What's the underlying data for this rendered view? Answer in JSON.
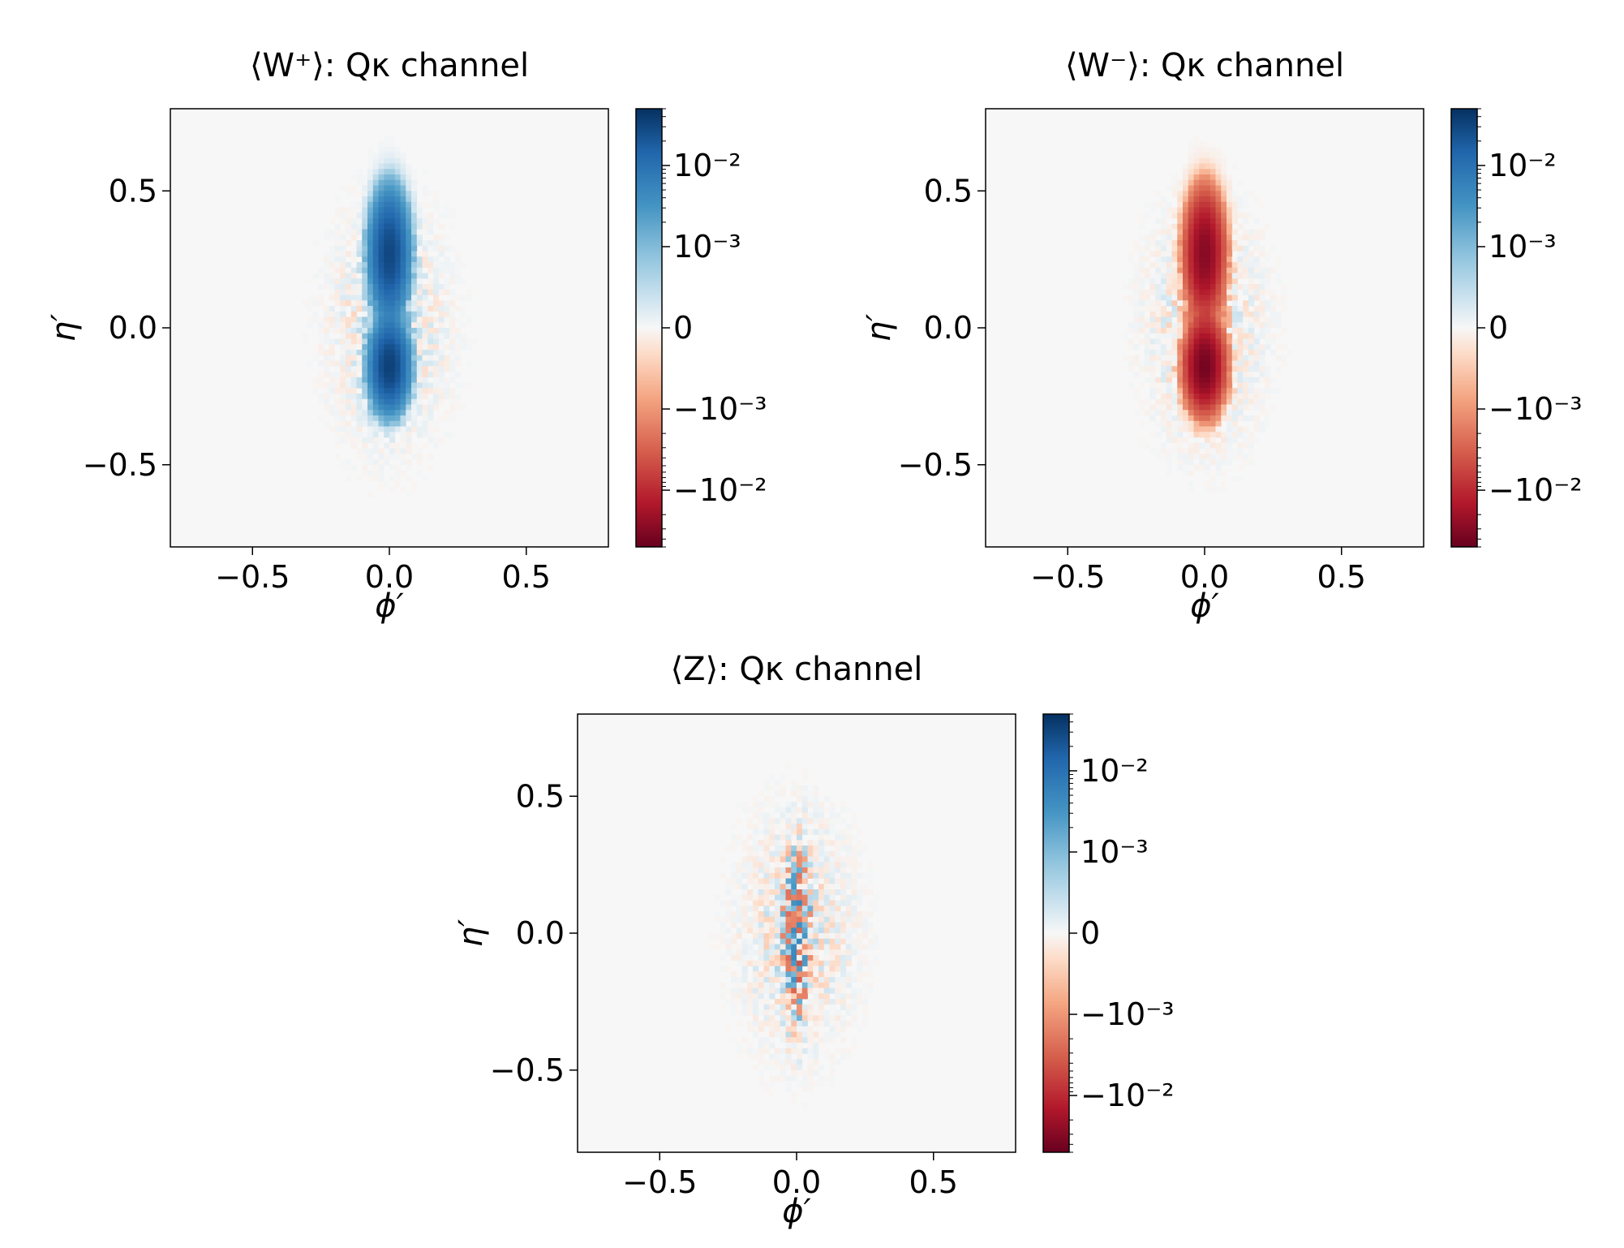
{
  "chart_data": [
    {
      "type": "heatmap",
      "title": "⟨W⁺⟩: Qκ channel",
      "xlabel": "ϕ′",
      "ylabel": "η′",
      "xlim": [
        -0.8,
        0.8
      ],
      "ylim": [
        -0.8,
        0.8
      ],
      "xticks": [
        -0.5,
        0.0,
        0.5
      ],
      "xtick_labels": [
        "−0.5",
        "0.0",
        "0.5"
      ],
      "yticks": [
        -0.5,
        0.0,
        0.5
      ],
      "ytick_labels": [
        "−0.5",
        "0.0",
        "0.5"
      ],
      "colorbar": {
        "scale": "symlog",
        "range": [
          -0.05,
          0.05
        ],
        "ticks": [
          0.01,
          0.001,
          0,
          -0.001,
          -0.01
        ],
        "tick_labels": [
          "10⁻²",
          "10⁻³",
          "0",
          "−10⁻³",
          "−10⁻²"
        ],
        "colormap": "RdBu",
        "colors": {
          "positive": "#08306b",
          "zero": "#f7f7f7",
          "negative": "#67001f"
        }
      },
      "blobs": [
        {
          "x": 0.0,
          "y": 0.27,
          "sx": 0.035,
          "sy": 0.11,
          "amp": 0.03
        },
        {
          "x": 0.0,
          "y": -0.14,
          "sx": 0.035,
          "sy": 0.08,
          "amp": 0.035
        }
      ]
    },
    {
      "type": "heatmap",
      "title": "⟨W⁻⟩: Qκ channel",
      "xlabel": "ϕ′",
      "ylabel": "η′",
      "xlim": [
        -0.8,
        0.8
      ],
      "ylim": [
        -0.8,
        0.8
      ],
      "xticks": [
        -0.5,
        0.0,
        0.5
      ],
      "xtick_labels": [
        "−0.5",
        "0.0",
        "0.5"
      ],
      "yticks": [
        -0.5,
        0.0,
        0.5
      ],
      "ytick_labels": [
        "−0.5",
        "0.0",
        "0.5"
      ],
      "colorbar": {
        "scale": "symlog",
        "range": [
          -0.05,
          0.05
        ],
        "ticks": [
          0.01,
          0.001,
          0,
          -0.001,
          -0.01
        ],
        "tick_labels": [
          "10⁻²",
          "10⁻³",
          "0",
          "−10⁻³",
          "−10⁻²"
        ],
        "colormap": "RdBu",
        "colors": {
          "positive": "#08306b",
          "zero": "#f7f7f7",
          "negative": "#67001f"
        }
      },
      "blobs": [
        {
          "x": 0.0,
          "y": 0.27,
          "sx": 0.035,
          "sy": 0.11,
          "amp": -0.03
        },
        {
          "x": 0.0,
          "y": -0.14,
          "sx": 0.035,
          "sy": 0.08,
          "amp": -0.04
        }
      ]
    },
    {
      "type": "heatmap",
      "title": "⟨Z⟩: Qκ channel",
      "xlabel": "ϕ′",
      "ylabel": "η′",
      "xlim": [
        -0.8,
        0.8
      ],
      "ylim": [
        -0.8,
        0.8
      ],
      "xticks": [
        -0.5,
        0.0,
        0.5
      ],
      "xtick_labels": [
        "−0.5",
        "0.0",
        "0.5"
      ],
      "yticks": [
        -0.5,
        0.0,
        0.5
      ],
      "ytick_labels": [
        "−0.5",
        "0.0",
        "0.5"
      ],
      "colorbar": {
        "scale": "symlog",
        "range": [
          -0.05,
          0.05
        ],
        "ticks": [
          0.01,
          0.001,
          0,
          -0.001,
          -0.01
        ],
        "tick_labels": [
          "10⁻²",
          "10⁻³",
          "0",
          "−10⁻³",
          "−10⁻²"
        ],
        "colormap": "RdBu",
        "colors": {
          "positive": "#08306b",
          "zero": "#f7f7f7",
          "negative": "#67001f"
        }
      },
      "blobs": []
    }
  ]
}
